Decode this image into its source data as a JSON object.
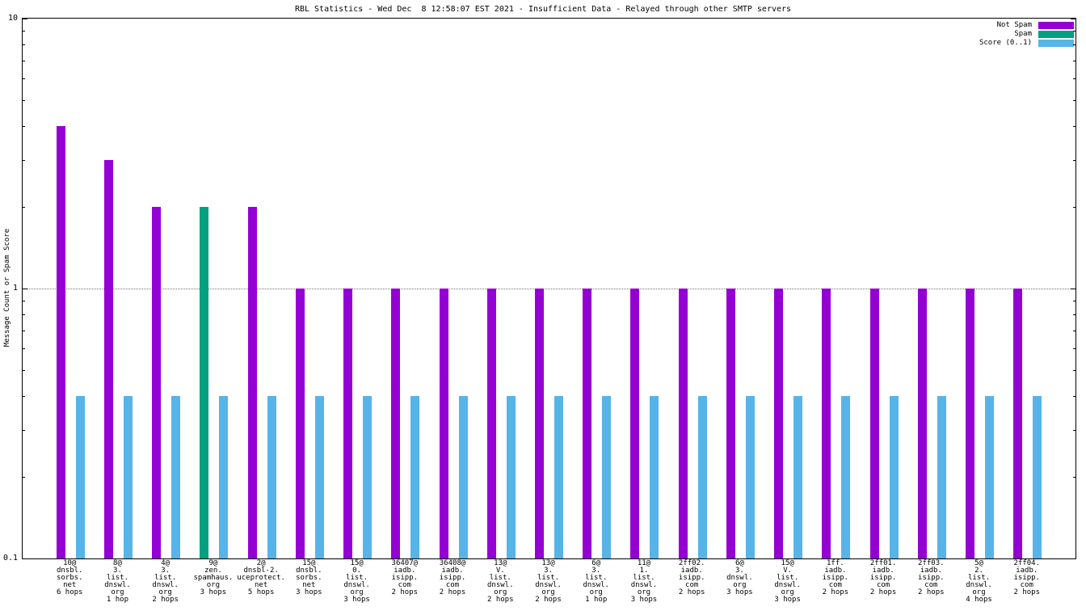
{
  "axis": {
    "y_ticks": [
      {
        "value": 10,
        "label": "10"
      },
      {
        "value": 1,
        "label": "1"
      },
      {
        "value": 0.1,
        "label": "0.1"
      }
    ],
    "grid_values": [
      1
    ],
    "minor_ticks": [
      0.2,
      0.3,
      0.4,
      0.5,
      0.6,
      0.7,
      0.8,
      0.9,
      2,
      3,
      4,
      5,
      6,
      7,
      8,
      9
    ]
  },
  "chart_data": {
    "type": "bar",
    "title": "RBL Statistics - Wed Dec  8 12:58:07 EST 2021 - Insufficient Data - Relayed through other SMTP servers",
    "ylabel": "Message Count or Spam Score",
    "xlabel": "",
    "y_scale": "log",
    "ylim": [
      0.1,
      10
    ],
    "grid": "horizontal dotted line at y=1",
    "legend_position": "top-right",
    "categories": [
      [
        "10@",
        "dnsbl.",
        "sorbs.",
        "net",
        "6 hops"
      ],
      [
        "8@",
        "3.",
        "list.",
        "dnswl.",
        "org",
        "1 hop"
      ],
      [
        "4@",
        "3.",
        "list.",
        "dnswl.",
        "org",
        "2 hops"
      ],
      [
        "9@",
        "zen.",
        "spamhaus.",
        "org",
        "3 hops"
      ],
      [
        "2@",
        "dnsbl-2.",
        "uceprotect.",
        "net",
        "5 hops"
      ],
      [
        "15@",
        "dnsbl.",
        "sorbs.",
        "net",
        "3 hops"
      ],
      [
        "15@",
        "0.",
        "list.",
        "dnswl.",
        "org",
        "3 hops"
      ],
      [
        "36407@",
        "iadb.",
        "isipp.",
        "com",
        "2 hops"
      ],
      [
        "36408@",
        "iadb.",
        "isipp.",
        "com",
        "2 hops"
      ],
      [
        "13@",
        "V.",
        "list.",
        "dnswl.",
        "org",
        "2 hops"
      ],
      [
        "13@",
        "3.",
        "list.",
        "dnswl.",
        "org",
        "2 hops"
      ],
      [
        "6@",
        "3.",
        "list.",
        "dnswl.",
        "org",
        "1 hop"
      ],
      [
        "11@",
        "1.",
        "list.",
        "dnswl.",
        "org",
        "3 hops"
      ],
      [
        "2ff02.",
        "iadb.",
        "isipp.",
        "com",
        "2 hops"
      ],
      [
        "6@",
        "3.",
        "dnswl.",
        "org",
        "3 hops"
      ],
      [
        "15@",
        "V.",
        "list.",
        "dnswl.",
        "org",
        "3 hops"
      ],
      [
        "1ff.",
        "iadb.",
        "isipp.",
        "com",
        "2 hops"
      ],
      [
        "2ff01.",
        "iadb.",
        "isipp.",
        "com",
        "2 hops"
      ],
      [
        "2ff03.",
        "iadb.",
        "isipp.",
        "com",
        "2 hops"
      ],
      [
        "5@",
        "2.",
        "list.",
        "dnswl.",
        "org",
        "4 hops"
      ],
      [
        "2ff04.",
        "iadb.",
        "isipp.",
        "com",
        "2 hops"
      ]
    ],
    "series": [
      {
        "name": "Not Spam",
        "color": "#9400d3",
        "values": [
          4,
          3,
          2,
          0,
          2,
          1,
          1,
          1,
          1,
          1,
          1,
          1,
          1,
          1,
          1,
          1,
          1,
          1,
          1,
          1,
          1
        ]
      },
      {
        "name": "Spam",
        "color": "#00a080",
        "values": [
          0,
          0,
          0,
          2,
          0,
          0,
          0,
          0,
          0,
          0,
          0,
          0,
          0,
          0,
          0,
          0,
          0,
          0,
          0,
          0,
          0
        ]
      },
      {
        "name": "Score (0..1)",
        "color": "#56b4e9",
        "values": [
          0.4,
          0.4,
          0.4,
          0.4,
          0.4,
          0.4,
          0.4,
          0.4,
          0.4,
          0.4,
          0.4,
          0.4,
          0.4,
          0.4,
          0.4,
          0.4,
          0.4,
          0.4,
          0.4,
          0.4,
          0.4
        ]
      }
    ]
  }
}
